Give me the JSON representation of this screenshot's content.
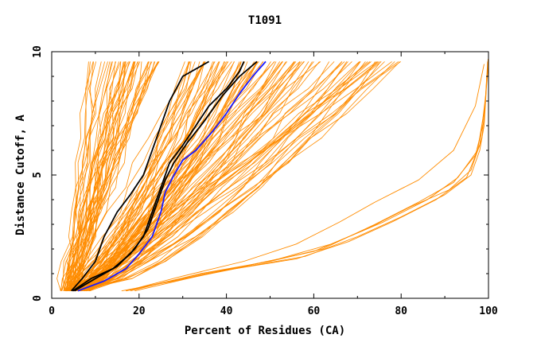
{
  "chart_data": {
    "type": "line",
    "title": "T1091",
    "xlabel": "Percent of Residues (CA)",
    "ylabel": "Distance Cutoff, A",
    "xlim": [
      0,
      100
    ],
    "ylim": [
      0,
      10
    ],
    "x_ticks": [
      "0",
      "20",
      "40",
      "60",
      "80",
      "100"
    ],
    "y_ticks": [
      "0",
      "5",
      "10"
    ],
    "grid": false,
    "legend": "none",
    "colors": {
      "background_models": "#ff8c00",
      "highlight_black": "#000000",
      "highlight_blue": "#1a1aff"
    },
    "highlight_series": [
      {
        "color": "#000000",
        "points": [
          [
            4.5,
            0.3
          ],
          [
            7,
            0.8
          ],
          [
            10,
            1.5
          ],
          [
            12,
            2.5
          ],
          [
            15,
            3.5
          ],
          [
            18,
            4.2
          ],
          [
            21,
            5.0
          ],
          [
            23,
            6.0
          ],
          [
            25,
            7.0
          ],
          [
            27,
            8.0
          ],
          [
            30,
            9.0
          ],
          [
            36,
            9.6
          ]
        ]
      },
      {
        "color": "#000000",
        "points": [
          [
            4.8,
            0.3
          ],
          [
            9,
            0.8
          ],
          [
            14,
            1.2
          ],
          [
            18,
            1.8
          ],
          [
            21,
            2.5
          ],
          [
            23,
            3.5
          ],
          [
            25,
            4.5
          ],
          [
            27,
            5.5
          ],
          [
            30,
            6.2
          ],
          [
            33,
            7.0
          ],
          [
            36,
            7.8
          ],
          [
            40,
            8.5
          ],
          [
            43,
            9.2
          ],
          [
            44,
            9.6
          ]
        ]
      },
      {
        "color": "#000000",
        "points": [
          [
            5.2,
            0.3
          ],
          [
            10,
            0.8
          ],
          [
            15,
            1.3
          ],
          [
            19,
            2.0
          ],
          [
            22,
            2.8
          ],
          [
            24,
            3.8
          ],
          [
            26,
            4.8
          ],
          [
            28,
            5.5
          ],
          [
            31,
            6.3
          ],
          [
            35,
            7.2
          ],
          [
            39,
            8.2
          ],
          [
            43,
            9.0
          ],
          [
            47,
            9.6
          ]
        ]
      },
      {
        "color": "#1a1aff",
        "points": [
          [
            6,
            0.3
          ],
          [
            12,
            0.7
          ],
          [
            17,
            1.2
          ],
          [
            20,
            1.8
          ],
          [
            23,
            2.5
          ],
          [
            25,
            3.5
          ],
          [
            26,
            4.3
          ],
          [
            28,
            5.0
          ],
          [
            30,
            5.6
          ],
          [
            33,
            6.0
          ],
          [
            37,
            6.8
          ],
          [
            40,
            7.5
          ],
          [
            43,
            8.3
          ],
          [
            46,
            9.0
          ],
          [
            49,
            9.6
          ]
        ]
      }
    ],
    "background_series": {
      "count": 150,
      "description_of_visual": "steep lines from near origin, fan of mid lines, and a lower cluster reaching ~100% only at high cutoff",
      "steep_group": {
        "count": 45,
        "end_x_range": [
          8,
          25
        ]
      },
      "mid_group": {
        "count": 95,
        "end_x_range": [
          30,
          80
        ]
      },
      "low_group": [
        {
          "points": [
            [
              17,
              0.3
            ],
            [
              30,
              0.8
            ],
            [
              45,
              1.3
            ],
            [
              58,
              1.7
            ],
            [
              70,
              2.5
            ],
            [
              80,
              3.3
            ],
            [
              90,
              4.2
            ],
            [
              96,
              5.0
            ],
            [
              98,
              6.0
            ],
            [
              99,
              7.0
            ],
            [
              99.5,
              8.5
            ],
            [
              100,
              9.5
            ]
          ]
        },
        {
          "points": [
            [
              17,
              0.3
            ],
            [
              32,
              0.9
            ],
            [
              47,
              1.4
            ],
            [
              60,
              1.9
            ],
            [
              72,
              2.8
            ],
            [
              82,
              3.7
            ],
            [
              91,
              4.4
            ],
            [
              96,
              5.2
            ],
            [
              98.5,
              6.5
            ],
            [
              99.3,
              8.0
            ],
            [
              99.8,
              9.6
            ]
          ]
        },
        {
          "points": [
            [
              18,
              0.3
            ],
            [
              34,
              1.0
            ],
            [
              50,
              1.5
            ],
            [
              62,
              2.0
            ],
            [
              74,
              3.0
            ],
            [
              84,
              3.9
            ],
            [
              92,
              4.7
            ],
            [
              97,
              5.8
            ],
            [
              99,
              7.2
            ],
            [
              99.6,
              9.0
            ]
          ]
        },
        {
          "points": [
            [
              16,
              0.3
            ],
            [
              28,
              0.7
            ],
            [
              42,
              1.2
            ],
            [
              56,
              1.6
            ],
            [
              68,
              2.3
            ],
            [
              78,
              3.1
            ],
            [
              88,
              4.0
            ],
            [
              95,
              4.9
            ],
            [
              98,
              6.2
            ],
            [
              99.4,
              8.3
            ],
            [
              99.9,
              9.7
            ]
          ]
        },
        {
          "points": [
            [
              19,
              0.3
            ],
            [
              36,
              1.0
            ],
            [
              52,
              1.6
            ],
            [
              64,
              2.2
            ],
            [
              76,
              3.1
            ],
            [
              86,
              4.0
            ],
            [
              93,
              4.9
            ],
            [
              97.5,
              6.0
            ],
            [
              99.2,
              7.8
            ]
          ]
        },
        {
          "points": [
            [
              17,
              0.3
            ],
            [
              30,
              0.9
            ],
            [
              44,
              1.5
            ],
            [
              56,
              2.2
            ],
            [
              66,
              3.1
            ],
            [
              74,
              3.9
            ],
            [
              84,
              4.8
            ],
            [
              92,
              6.0
            ],
            [
              97,
              7.8
            ],
            [
              99,
              9.5
            ]
          ]
        }
      ]
    }
  }
}
